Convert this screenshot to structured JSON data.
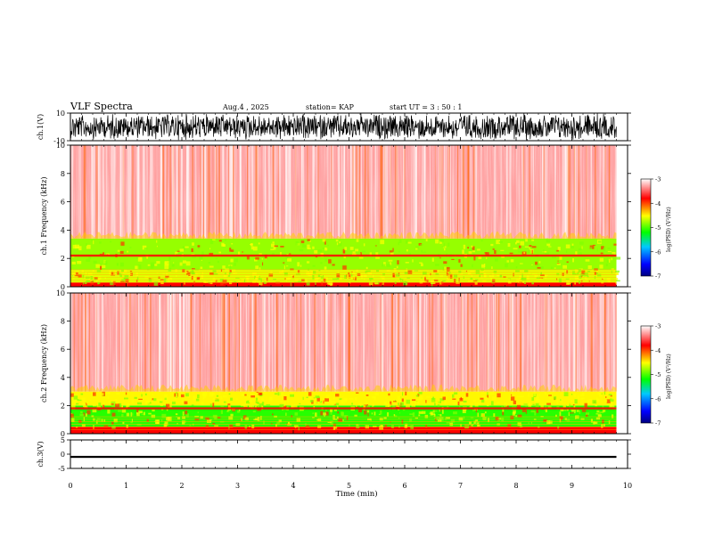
{
  "header": {
    "title": "VLF Spectra",
    "date": "Aug.4 , 2025",
    "station": "station= KAP",
    "start_ut": "start UT = 3 : 50 : 1"
  },
  "colorbar": {
    "label": "log(PSD) (V²/Hz)",
    "ticks": [
      "-3",
      "-4",
      "-5",
      "-6",
      "-7"
    ],
    "range": [
      -7,
      -3
    ],
    "colors": [
      "#000080",
      "#0000ff",
      "#00c8ff",
      "#00ff00",
      "#ffff00",
      "#ff0000",
      "#ffffff"
    ]
  },
  "chart_data": [
    {
      "type": "line",
      "id": "ch1-waveform",
      "ylabel": "ch.1(V)",
      "ylim": [
        -10,
        10
      ],
      "yticks": [
        "10",
        "-10"
      ],
      "xlim": [
        0,
        10
      ],
      "description_of_series": "dense waveform spanning roughly -8 to 8 V"
    },
    {
      "type": "heatmap",
      "id": "ch1-spectrogram",
      "ylabel": "ch.1 Frequency (kHz)",
      "ylim": [
        0,
        10
      ],
      "yticks": [
        "0",
        "2",
        "4",
        "6",
        "8",
        "10"
      ],
      "xlim": [
        0,
        10
      ],
      "bands_khz": [
        {
          "from": 0,
          "to": 0.3,
          "level": -3.8
        },
        {
          "from": 0.3,
          "to": 1.2,
          "level": -4.6
        },
        {
          "from": 1.2,
          "to": 3.4,
          "level": -4.8
        },
        {
          "from": 3.4,
          "to": 10,
          "level": -3.3
        }
      ],
      "line_khz": 2.2
    },
    {
      "type": "heatmap",
      "id": "ch2-spectrogram",
      "ylabel": "ch.2 Frequency (kHz)",
      "ylim": [
        0,
        10
      ],
      "yticks": [
        "0",
        "2",
        "4",
        "6",
        "8",
        "10"
      ],
      "xlim": [
        0,
        10
      ],
      "bands_khz": [
        {
          "from": 0,
          "to": 0.5,
          "level": -3.8
        },
        {
          "from": 0.5,
          "to": 2.0,
          "level": -5.1
        },
        {
          "from": 2.0,
          "to": 3.0,
          "level": -4.5
        },
        {
          "from": 3.0,
          "to": 10,
          "level": -3.3
        }
      ],
      "line_khz": 1.8
    },
    {
      "type": "line",
      "id": "ch3-waveform",
      "ylabel": "ch.3(V)",
      "ylim": [
        -5,
        5
      ],
      "yticks": [
        "5",
        "0",
        "-5"
      ],
      "xlim": [
        0,
        10
      ],
      "description_of_series": "thick band roughly between -1.3 and -0.6 V"
    }
  ],
  "xaxis": {
    "label": "Time (min)",
    "ticks": [
      "0",
      "1",
      "2",
      "3",
      "4",
      "5",
      "6",
      "7",
      "8",
      "9",
      "10"
    ],
    "data_end": 9.8
  }
}
